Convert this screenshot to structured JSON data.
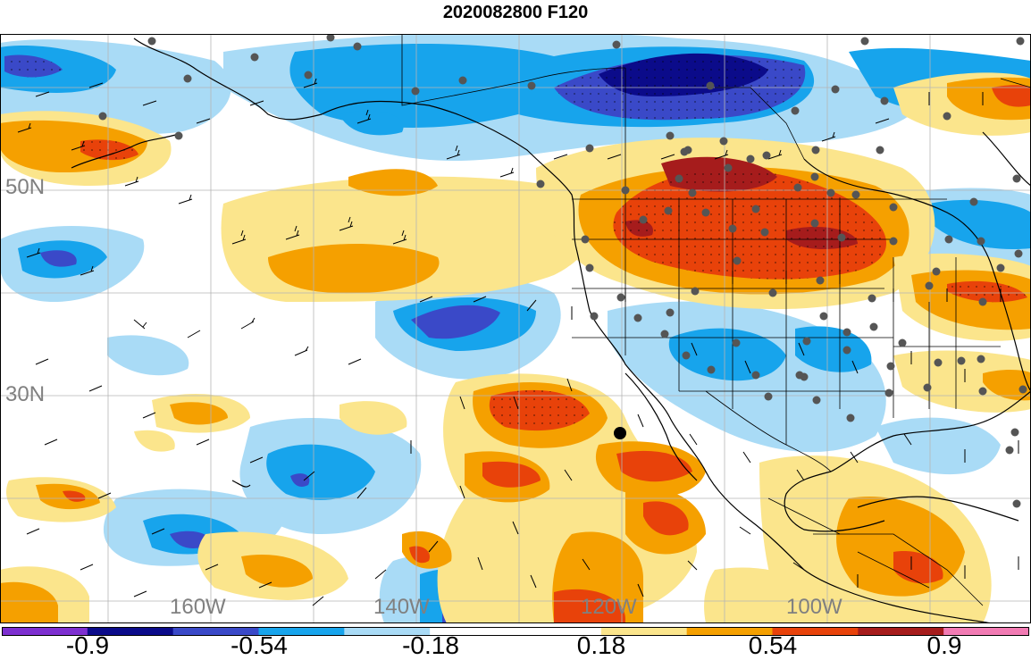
{
  "title": "2020082800 F120",
  "lat_labels": [
    "50N",
    "30N"
  ],
  "lon_labels": [
    "160W",
    "140W",
    "120W",
    "100W"
  ],
  "colorbar": {
    "colors": [
      "#7d2fd0",
      "#0b0b8a",
      "#3a49c8",
      "#17a4ec",
      "#a9dbf6",
      "#ffffff",
      "#ffffff",
      "#fbe58c",
      "#f5a000",
      "#e8420a",
      "#a61c1c",
      "#f27bb4"
    ],
    "labels": [
      "-0.9",
      "-0.54",
      "-0.18",
      "0.18",
      "0.54",
      "0.9"
    ]
  },
  "palette": {
    "deep_blue": "#0b0b8a",
    "mid_blue": "#3a49c8",
    "blue": "#17a4ec",
    "light_blue": "#a9dbf6",
    "light_yellow": "#fbe58c",
    "orange": "#f5a000",
    "red_orange": "#e8420a",
    "dark_red": "#a61c1c"
  }
}
